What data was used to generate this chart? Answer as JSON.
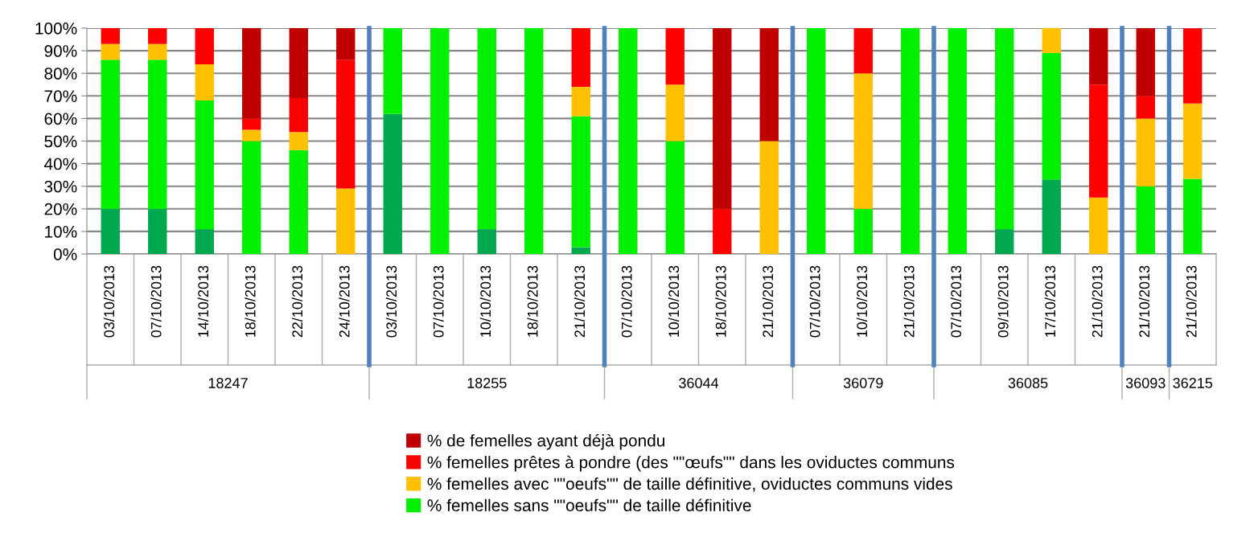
{
  "chart_data": {
    "type": "bar",
    "stacked": true,
    "categories": [
      "03/10/2013",
      "07/10/2013",
      "14/10/2013",
      "18/10/2013",
      "22/10/2013",
      "24/10/2013",
      "03/10/2013",
      "07/10/2013",
      "10/10/2013",
      "18/10/2013",
      "21/10/2013",
      "07/10/2013",
      "10/10/2013",
      "18/10/2013",
      "21/10/2013",
      "07/10/2013",
      "10/10/2013",
      "21/10/2013",
      "07/10/2013",
      "09/10/2013",
      "17/10/2013",
      "21/10/2013",
      "21/10/2013",
      "21/10/2013"
    ],
    "annotations": [
      "18247",
      "18255",
      "36044",
      "36079",
      "36085",
      "36093",
      "36215"
    ],
    "series": [
      {
        "color": "#00a850",
        "values": [
          20,
          20,
          11,
          0,
          0,
          0,
          62,
          0,
          11,
          0,
          3,
          0,
          0,
          0,
          0,
          0,
          0,
          0,
          0,
          11,
          33,
          0,
          0,
          0
        ]
      },
      {
        "name": "% femelles sans \"\"oeufs\"\" de taille définitive",
        "color": "#00f000",
        "values": [
          66,
          66,
          57,
          50,
          46,
          0,
          38,
          100,
          89,
          100,
          58,
          100,
          50,
          0,
          0,
          100,
          20,
          100,
          100,
          89,
          56,
          0,
          30,
          33.3
        ]
      },
      {
        "name": "% femelles avec \"\"oeufs\"\" de taille définitive, oviductes communs vides",
        "color": "#ffc000",
        "values": [
          7,
          7,
          16,
          5,
          8,
          29,
          0,
          0,
          0,
          0,
          13,
          0,
          25,
          0,
          50,
          0,
          60,
          0,
          0,
          0,
          11,
          25,
          30,
          33.3
        ]
      },
      {
        "name": "% femelles prêtes à pondre (des \"\"œufs\"\" dans les oviductes communs",
        "color": "#ff0000",
        "values": [
          7,
          7,
          16,
          5,
          15,
          57,
          0,
          0,
          0,
          0,
          26,
          0,
          25,
          20,
          0,
          0,
          20,
          0,
          0,
          0,
          0,
          50,
          10,
          33.3
        ]
      },
      {
        "name": "% de femelles ayant déjà pondu",
        "color": "#c00000",
        "values": [
          0,
          0,
          0,
          40,
          31,
          14,
          0,
          0,
          0,
          0,
          0,
          0,
          0,
          80,
          50,
          0,
          0,
          0,
          0,
          0,
          0,
          25,
          30,
          0
        ]
      }
    ],
    "ylim": [
      0,
      100
    ],
    "yticks": [
      {
        "value": 0,
        "label": "0%"
      },
      {
        "value": 10,
        "label": "10%"
      },
      {
        "value": 20,
        "label": "20%"
      },
      {
        "value": 30,
        "label": "30%"
      },
      {
        "value": 40,
        "label": "40%"
      },
      {
        "value": 50,
        "label": "50%"
      },
      {
        "value": 60,
        "label": "60%"
      },
      {
        "value": 70,
        "label": "70%"
      },
      {
        "value": 80,
        "label": "80%"
      },
      {
        "value": 90,
        "label": "90%"
      },
      {
        "value": 100,
        "label": "100%"
      }
    ],
    "grid": "y",
    "legend": "bottom"
  }
}
